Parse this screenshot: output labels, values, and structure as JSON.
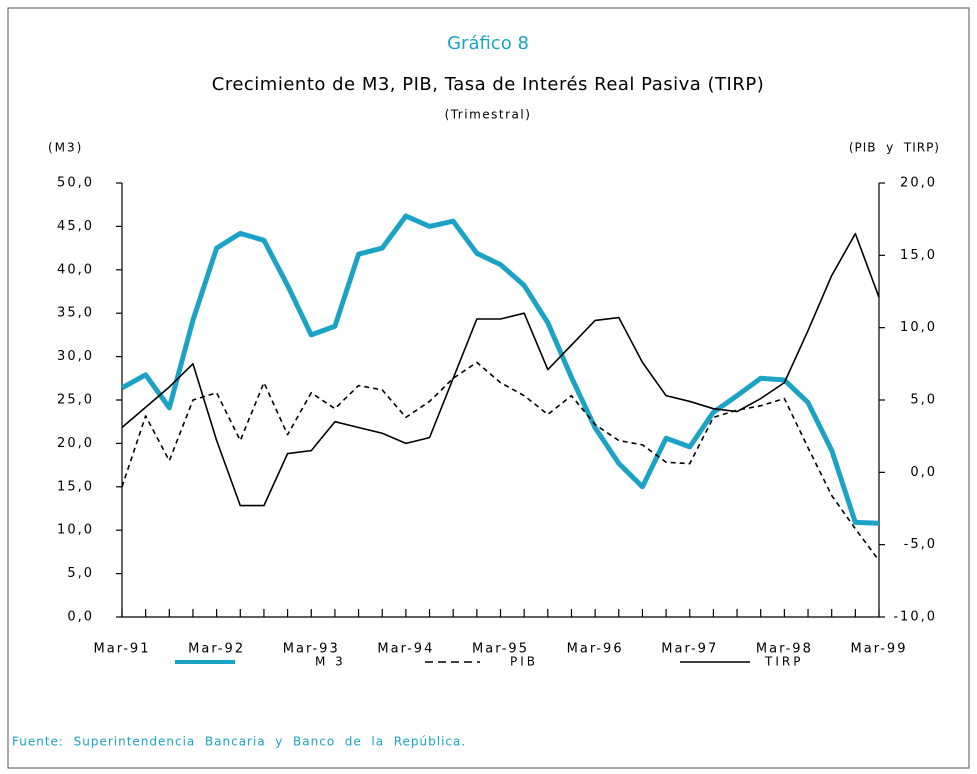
{
  "chart_data": {
    "type": "line",
    "kicker": "Gráfico 8",
    "title": "Crecimiento de M3, PIB, Tasa de Interés Real Pasiva (TIRP)",
    "subtitle": "(Trimestral)",
    "y_label": "(M3)",
    "y2_label": "(PIB  y  TIRP)",
    "source": "Fuente:  Superintendencia  Bancaria  y  Banco  de  la  República.",
    "categories": [
      "Mar-91",
      null,
      null,
      null,
      "Mar-92",
      null,
      null,
      null,
      "Mar-93",
      null,
      null,
      null,
      "Mar-94",
      null,
      null,
      null,
      "Mar-95",
      null,
      null,
      null,
      "Mar-96",
      null,
      null,
      null,
      "Mar-97",
      null,
      null,
      null,
      "Mar-98",
      null,
      null,
      null,
      "Mar-99"
    ],
    "ylim": [
      0,
      50
    ],
    "yticks": [
      {
        "value": 0,
        "label": "0,0"
      },
      {
        "value": 5,
        "label": "5,0"
      },
      {
        "value": 10,
        "label": "10,0"
      },
      {
        "value": 15,
        "label": "15,0"
      },
      {
        "value": 20,
        "label": "20,0"
      },
      {
        "value": 25,
        "label": "25,0"
      },
      {
        "value": 30,
        "label": "30,0"
      },
      {
        "value": 35,
        "label": "35,0"
      },
      {
        "value": 40,
        "label": "40,0"
      },
      {
        "value": 45,
        "label": "45,0"
      },
      {
        "value": 50,
        "label": "50,0"
      }
    ],
    "y2lim": [
      -10,
      20
    ],
    "y2ticks": [
      {
        "value": -10,
        "label": "-10,0"
      },
      {
        "value": -5,
        "label": "-5,0"
      },
      {
        "value": 0,
        "label": "0,0"
      },
      {
        "value": 5,
        "label": "5,0"
      },
      {
        "value": 10,
        "label": "10,0"
      },
      {
        "value": 15,
        "label": "15,0"
      },
      {
        "value": 20,
        "label": "20,0"
      }
    ],
    "grid": false,
    "series": [
      {
        "name": "M 3",
        "color": "#1ba3c6",
        "width": 5,
        "dashed": false,
        "axis": "y",
        "values": [
          26.4,
          27.9,
          24.1,
          34.2,
          42.5,
          44.2,
          43.4,
          38.2,
          32.5,
          33.5,
          41.8,
          42.5,
          46.2,
          45.0,
          45.6,
          41.9,
          40.6,
          38.2,
          33.9,
          27.6,
          21.8,
          17.7,
          15.0,
          20.6,
          19.6,
          23.6,
          25.5,
          27.5,
          27.3,
          24.7,
          19.2,
          10.9,
          10.8
        ]
      },
      {
        "name": "PIB",
        "color": "#000000",
        "width": 1.6,
        "dashed": true,
        "axis": "y2",
        "values": [
          -1.0,
          3.9,
          0.8,
          5.0,
          5.5,
          2.2,
          6.2,
          2.6,
          5.5,
          4.4,
          6.0,
          5.7,
          3.8,
          4.9,
          6.5,
          7.6,
          6.2,
          5.3,
          4.0,
          5.3,
          3.3,
          2.2,
          1.9,
          0.7,
          0.6,
          3.8,
          4.3,
          4.6,
          5.1,
          1.7,
          -1.6,
          -3.9,
          -6.1
        ]
      },
      {
        "name": "TIRP",
        "color": "#000000",
        "width": 1.6,
        "dashed": false,
        "axis": "y2",
        "values": [
          3.1,
          4.5,
          5.9,
          7.5,
          2.2,
          -2.3,
          -2.3,
          1.3,
          1.5,
          3.5,
          3.1,
          2.7,
          2.0,
          2.4,
          6.5,
          10.6,
          10.6,
          11.0,
          7.1,
          8.8,
          10.5,
          10.7,
          7.6,
          5.3,
          4.9,
          4.4,
          4.2,
          5.1,
          6.2,
          9.8,
          13.6,
          16.5,
          12.1
        ]
      }
    ]
  }
}
